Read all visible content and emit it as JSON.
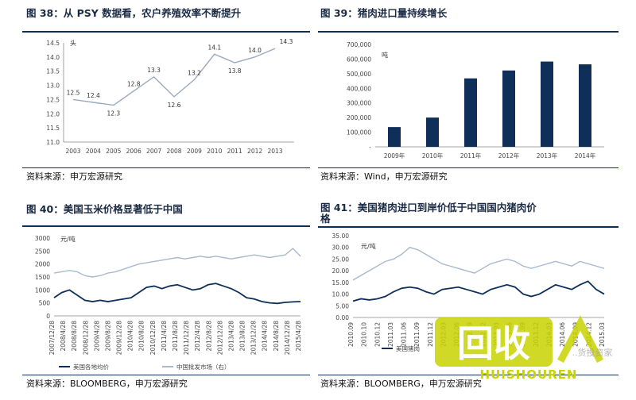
{
  "panels": {
    "p38": {
      "title": "图 38：从 PSY 数据看，农户养殖效率不断提升",
      "source": "资料来源：申万宏源研究"
    },
    "p39": {
      "title": "图 39：猪肉进口量持续增长",
      "source": "资料来源：Wind，申万宏源研究"
    },
    "p40": {
      "title": "图 40：美国玉米价格显著低于中国",
      "source": "资料来源：BLOOMBERG，申万宏源研究"
    },
    "p41": {
      "title": "图 41：美国猪肉进口到岸价低于中国国内猪肉价",
      "title_line2": "格",
      "source": "资料来源：BLOOMBERG，申万宏源研究"
    }
  },
  "watermark": {
    "main": "回收",
    "sub": "HUISHOUREN",
    "small": "..货投资家"
  },
  "chart_data": [
    {
      "id": "p38",
      "type": "line",
      "unit": "头",
      "x": [
        "2003",
        "2004",
        "2005",
        "2006",
        "2007",
        "2008",
        "2009",
        "2010",
        "2011",
        "2012",
        "2013"
      ],
      "values": [
        12.5,
        12.4,
        12.3,
        12.8,
        13.3,
        12.6,
        13.2,
        14.1,
        13.8,
        14.0,
        14.3
      ],
      "ylim": [
        11.0,
        14.5
      ],
      "yticks": [
        "11.0",
        "11.5",
        "12.0",
        "12.5",
        "13.0",
        "13.5",
        "14.0",
        "14.5"
      ],
      "color": "#9aa9bd",
      "grid": false
    },
    {
      "id": "p39",
      "type": "bar",
      "unit": "吨",
      "categories": [
        "2009年",
        "2010年",
        "2011年",
        "2012年",
        "2013年",
        "2014年"
      ],
      "values": [
        135000,
        200000,
        468000,
        522000,
        583000,
        564000
      ],
      "ylim": [
        0,
        700000
      ],
      "yticks": [
        "-",
        "100,000",
        "200,000",
        "300,000",
        "400,000",
        "500,000",
        "600,000",
        "700,000"
      ],
      "color": "#0d2f5a",
      "grid": false
    },
    {
      "id": "p40",
      "type": "line",
      "unit": "元/吨",
      "ylim": [
        0,
        3000
      ],
      "yticks": [
        "0",
        "500",
        "1000",
        "1500",
        "2000",
        "2500",
        "3000"
      ],
      "xticks": [
        "2007/12/28",
        "2008/4/28",
        "2008/8/28",
        "2008/12/28",
        "2009/4/28",
        "2009/8/28",
        "2009/12/28",
        "2010/4/28",
        "2010/8/28",
        "2010/12/28",
        "2011/4/28",
        "2011/8/28",
        "2011/12/28",
        "2012/4/28",
        "2012/8/28",
        "2012/12/28",
        "2013/4/28",
        "2013/8/28",
        "2013/12/28",
        "2014/4/28",
        "2014/8/28",
        "2014/12/28",
        "2015/4/28"
      ],
      "series": [
        {
          "name": "美国各地均价",
          "color": "#0d2f5a",
          "values": [
            700,
            900,
            1000,
            800,
            600,
            550,
            600,
            550,
            600,
            650,
            700,
            900,
            1100,
            1150,
            1050,
            1150,
            1200,
            1100,
            1000,
            1050,
            1200,
            1250,
            1150,
            1050,
            900,
            700,
            650,
            550,
            500,
            480,
            520,
            540,
            550
          ]
        },
        {
          "name": "中国批发市场（右）",
          "color": "#a9b9cc",
          "values": [
            1650,
            1700,
            1750,
            1700,
            1550,
            1500,
            1550,
            1650,
            1700,
            1800,
            1900,
            2000,
            2050,
            2100,
            2150,
            2200,
            2250,
            2200,
            2250,
            2300,
            2250,
            2300,
            2250,
            2200,
            2250,
            2300,
            2350,
            2300,
            2250,
            2300,
            2350,
            2600,
            2300
          ]
        }
      ],
      "grid": false
    },
    {
      "id": "p41",
      "type": "line",
      "unit": "元/吨",
      "ylim": [
        0,
        35
      ],
      "yticks": [
        "0.00",
        "5.00",
        "10.00",
        "15.00",
        "20.00",
        "25.00",
        "30.00",
        "35.00"
      ],
      "xticks": [
        "2010.09",
        "2010.10",
        "2010.12",
        "2011.03",
        "2011.06",
        "2011.09",
        "2011.12",
        "2012.03",
        "2012.06",
        "2012.09",
        "2012.12",
        "2013.03",
        "2013.06",
        "2013.09",
        "2013.12",
        "2014.03",
        "2014.06",
        "2014.09",
        "2014.12",
        "2015.03"
      ],
      "series": [
        {
          "name": "美国猪肉",
          "color": "#0d2f5a",
          "values": [
            7,
            8,
            7.5,
            8,
            9,
            11,
            12.5,
            13,
            12.5,
            11,
            10,
            12,
            12.5,
            13,
            12,
            11,
            10,
            12,
            13,
            14,
            13,
            10,
            9,
            10,
            12,
            14,
            13,
            12,
            14,
            15.5,
            12,
            10
          ]
        },
        {
          "name": "",
          "color": "#a9b9cc",
          "values": [
            16,
            18,
            20,
            22,
            24,
            25,
            27,
            30,
            29,
            27,
            25,
            23,
            22,
            21,
            20,
            19,
            21,
            23,
            24,
            25,
            24,
            22,
            21,
            22,
            23,
            24,
            23,
            22,
            24,
            23,
            22,
            21
          ]
        }
      ],
      "grid": false
    }
  ]
}
